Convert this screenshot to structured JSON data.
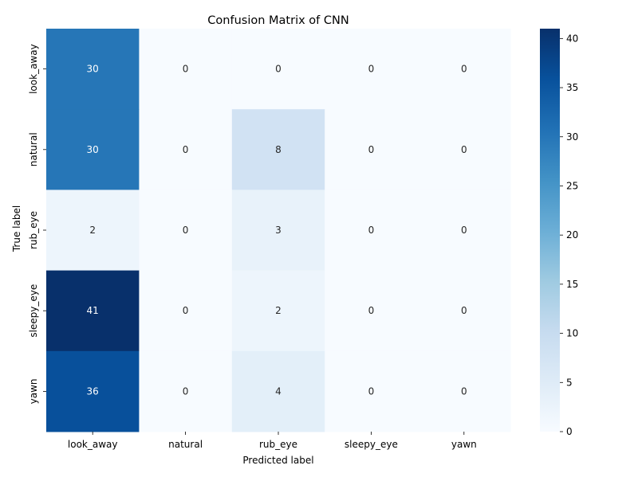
{
  "chart_data": {
    "type": "heatmap",
    "title": "Confusion Matrix of CNN",
    "xlabel": "Predicted label",
    "ylabel": "True label",
    "x_categories": [
      "look_away",
      "natural",
      "rub_eye",
      "sleepy_eye",
      "yawn"
    ],
    "y_categories": [
      "look_away",
      "natural",
      "rub_eye",
      "sleepy_eye",
      "yawn"
    ],
    "values": [
      [
        30,
        0,
        0,
        0,
        0
      ],
      [
        30,
        0,
        8,
        0,
        0
      ],
      [
        2,
        0,
        3,
        0,
        0
      ],
      [
        41,
        0,
        2,
        0,
        0
      ],
      [
        36,
        0,
        4,
        0,
        0
      ]
    ],
    "colorbar": {
      "min": 0,
      "max": 41,
      "ticks": [
        0,
        5,
        10,
        15,
        20,
        25,
        30,
        35,
        40
      ]
    },
    "colormap": "Blues",
    "grid": false
  }
}
